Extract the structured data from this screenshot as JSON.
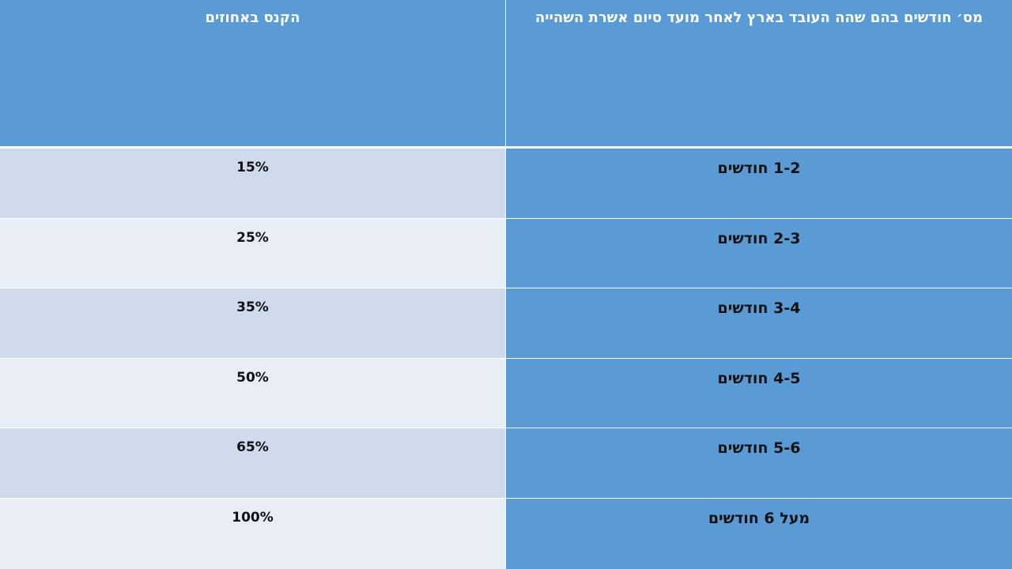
{
  "table": {
    "header": {
      "months_col": "מס׳ חודשים בהם שהה העובד בארץ לאחר מועד סיום אשרת השהייה",
      "penalty_col": "הקנס באחוזים"
    },
    "rows": [
      {
        "months": "1-2 חודשים",
        "penalty": "15%"
      },
      {
        "months": "2-3 חודשים",
        "penalty": "25%"
      },
      {
        "months": "3-4 חודשים",
        "penalty": "35%"
      },
      {
        "months": "4-5 חודשים",
        "penalty": "50%"
      },
      {
        "months": "5-6 חודשים",
        "penalty": "65%"
      },
      {
        "months": "מעל 6 חודשים",
        "penalty": "100%"
      }
    ]
  },
  "colors": {
    "header_bg": "#5b9bd5",
    "months_cell_bg": "#5b9bd5",
    "penalty_band_dark": "#cfdbed",
    "penalty_band_light": "#e9edf6"
  }
}
